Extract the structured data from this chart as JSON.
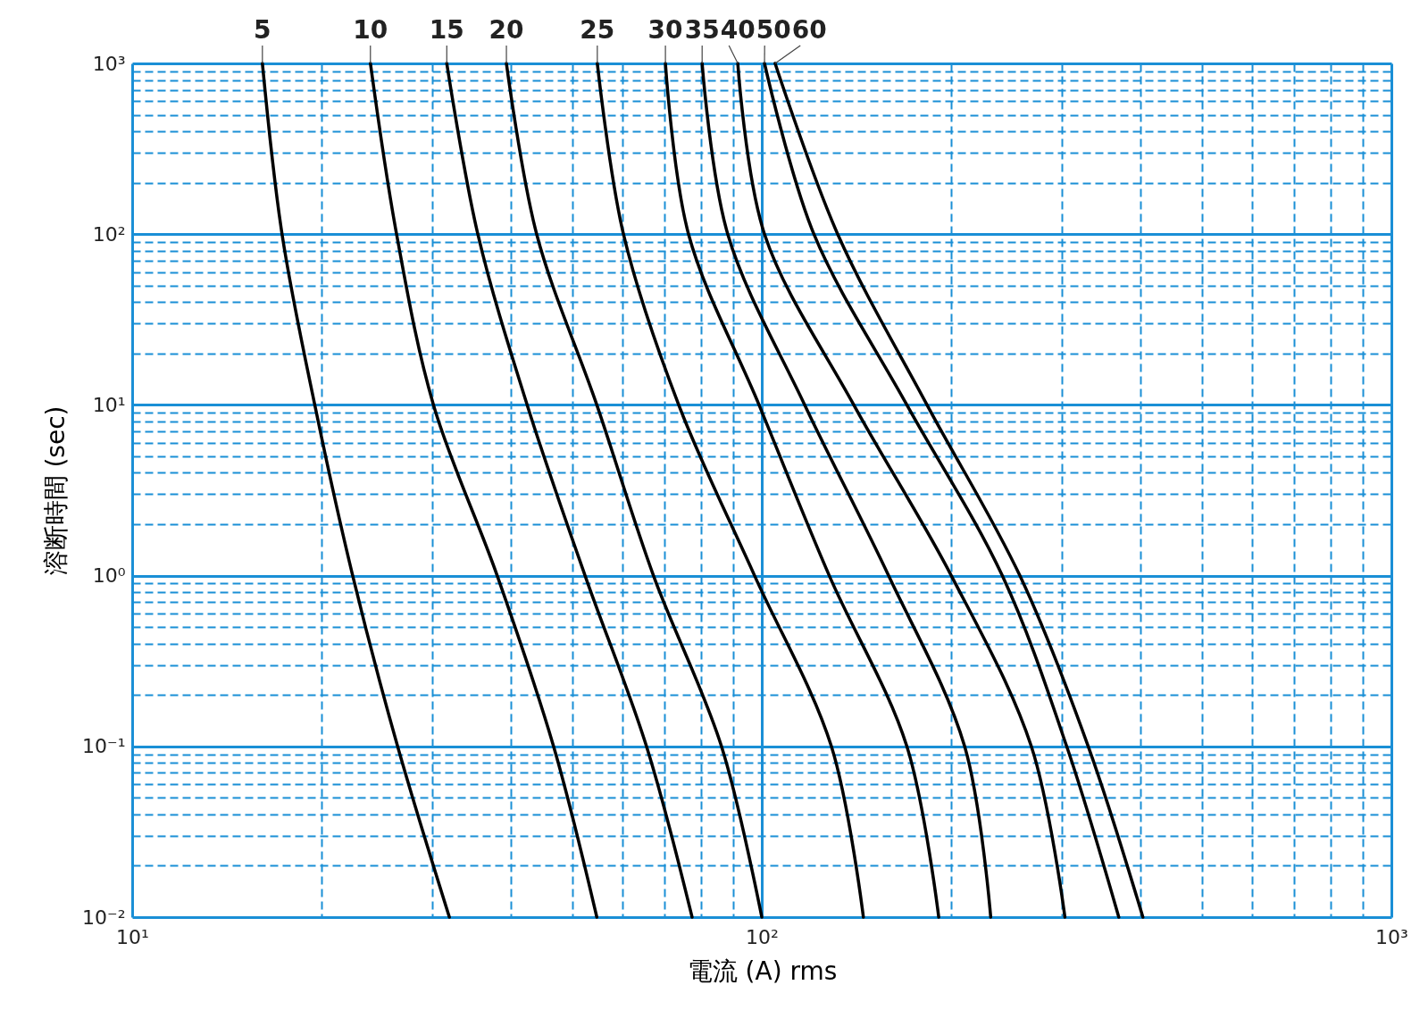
{
  "chart_data": {
    "type": "line",
    "xlabel": "電流 (A) rms",
    "ylabel": "溶断時間 (sec)",
    "log": "xy",
    "grid": true,
    "legend": false,
    "marker": "none",
    "line_style": "solid",
    "xlim": [
      10,
      1000
    ],
    "ylim": [
      0.01,
      1000
    ],
    "xticks": [
      {
        "value": 10,
        "label": "10¹"
      },
      {
        "value": 20,
        "label": null
      },
      {
        "value": 30,
        "label": null
      },
      {
        "value": 40,
        "label": null
      },
      {
        "value": 50,
        "label": null
      },
      {
        "value": 60,
        "label": null
      },
      {
        "value": 70,
        "label": null
      },
      {
        "value": 80,
        "label": null
      },
      {
        "value": 90,
        "label": null
      },
      {
        "value": 100,
        "label": "10²"
      },
      {
        "value": 200,
        "label": null
      },
      {
        "value": 300,
        "label": null
      },
      {
        "value": 400,
        "label": null
      },
      {
        "value": 500,
        "label": null
      },
      {
        "value": 600,
        "label": null
      },
      {
        "value": 700,
        "label": null
      },
      {
        "value": 800,
        "label": null
      },
      {
        "value": 900,
        "label": null
      },
      {
        "value": 1000,
        "label": "10³"
      }
    ],
    "yticks": [
      {
        "value": 0.01,
        "label": "10⁻²"
      },
      {
        "value": 0.02,
        "label": null
      },
      {
        "value": 0.03,
        "label": null
      },
      {
        "value": 0.04,
        "label": null
      },
      {
        "value": 0.05,
        "label": null
      },
      {
        "value": 0.06,
        "label": null
      },
      {
        "value": 0.07,
        "label": null
      },
      {
        "value": 0.08,
        "label": null
      },
      {
        "value": 0.09,
        "label": null
      },
      {
        "value": 0.1,
        "label": "10⁻¹"
      },
      {
        "value": 0.2,
        "label": null
      },
      {
        "value": 0.3,
        "label": null
      },
      {
        "value": 0.4,
        "label": null
      },
      {
        "value": 0.5,
        "label": null
      },
      {
        "value": 0.6,
        "label": null
      },
      {
        "value": 0.7,
        "label": null
      },
      {
        "value": 0.8,
        "label": null
      },
      {
        "value": 0.9,
        "label": null
      },
      {
        "value": 1,
        "label": "10⁰"
      },
      {
        "value": 2,
        "label": null
      },
      {
        "value": 3,
        "label": null
      },
      {
        "value": 4,
        "label": null
      },
      {
        "value": 5,
        "label": null
      },
      {
        "value": 6,
        "label": null
      },
      {
        "value": 7,
        "label": null
      },
      {
        "value": 8,
        "label": null
      },
      {
        "value": 9,
        "label": null
      },
      {
        "value": 10,
        "label": "10¹"
      },
      {
        "value": 20,
        "label": null
      },
      {
        "value": 30,
        "label": null
      },
      {
        "value": 40,
        "label": null
      },
      {
        "value": 50,
        "label": null
      },
      {
        "value": 60,
        "label": null
      },
      {
        "value": 70,
        "label": null
      },
      {
        "value": 80,
        "label": null
      },
      {
        "value": 90,
        "label": null
      },
      {
        "value": 100,
        "label": "10²"
      },
      {
        "value": 200,
        "label": null
      },
      {
        "value": 300,
        "label": null
      },
      {
        "value": 400,
        "label": null
      },
      {
        "value": 500,
        "label": null
      },
      {
        "value": 600,
        "label": null
      },
      {
        "value": 700,
        "label": null
      },
      {
        "value": 800,
        "label": null
      },
      {
        "value": 900,
        "label": null
      },
      {
        "value": 1000,
        "label": "10³"
      }
    ],
    "series": [
      {
        "name": "5",
        "color": "#000000",
        "x": [
          16.1,
          17.3,
          19.5,
          22.4,
          26.4,
          31.9
        ],
        "values": [
          1000,
          100,
          10,
          1,
          0.1,
          0.01
        ]
      },
      {
        "name": "10",
        "color": "#000000",
        "x": [
          23.9,
          26.3,
          30.1,
          38,
          46.7,
          54.7
        ],
        "values": [
          1000,
          100,
          10,
          1,
          0.1,
          0.01
        ]
      },
      {
        "name": "15",
        "color": "#000000",
        "x": [
          31.6,
          35.4,
          42.4,
          52.4,
          65.6,
          77.5
        ],
        "values": [
          1000,
          100,
          10,
          1,
          0.1,
          0.01
        ]
      },
      {
        "name": "20",
        "color": "#000000",
        "x": [
          39.3,
          43.9,
          54.7,
          67.3,
          86.3,
          100
        ],
        "values": [
          1000,
          100,
          10,
          1,
          0.1,
          0.01
        ]
      },
      {
        "name": "25",
        "color": "#000000",
        "x": [
          54.8,
          60.3,
          73.8,
          97.4,
          129,
          145
        ],
        "values": [
          1000,
          100,
          10,
          1,
          0.1,
          0.01
        ]
      },
      {
        "name": "30",
        "color": "#000000",
        "x": [
          70.3,
          76.5,
          99,
          128,
          170,
          191
        ],
        "values": [
          1000,
          100,
          10,
          1,
          0.1,
          0.01
        ]
      },
      {
        "name": "35",
        "color": "#000000",
        "x": [
          80.4,
          88.3,
          117,
          159,
          210,
          231
        ],
        "values": [
          1000,
          100,
          10,
          1,
          0.1,
          0.01
        ]
      },
      {
        "name": "40",
        "color": "#000000",
        "x": [
          91.6,
          101,
          140,
          200,
          268,
          303
        ],
        "values": [
          1000,
          100,
          10,
          1,
          0.1,
          0.01
        ]
      },
      {
        "name": "50",
        "color": "#000000",
        "x": [
          101,
          121,
          170,
          241,
          305,
          369
        ],
        "values": [
          1000,
          100,
          10,
          1,
          0.1,
          0.01
        ]
      },
      {
        "name": "60",
        "color": "#000000",
        "x": [
          105,
          132,
          183,
          257,
          330,
          403
        ],
        "values": [
          1000,
          100,
          10,
          1,
          0.1,
          0.01
        ]
      }
    ]
  }
}
